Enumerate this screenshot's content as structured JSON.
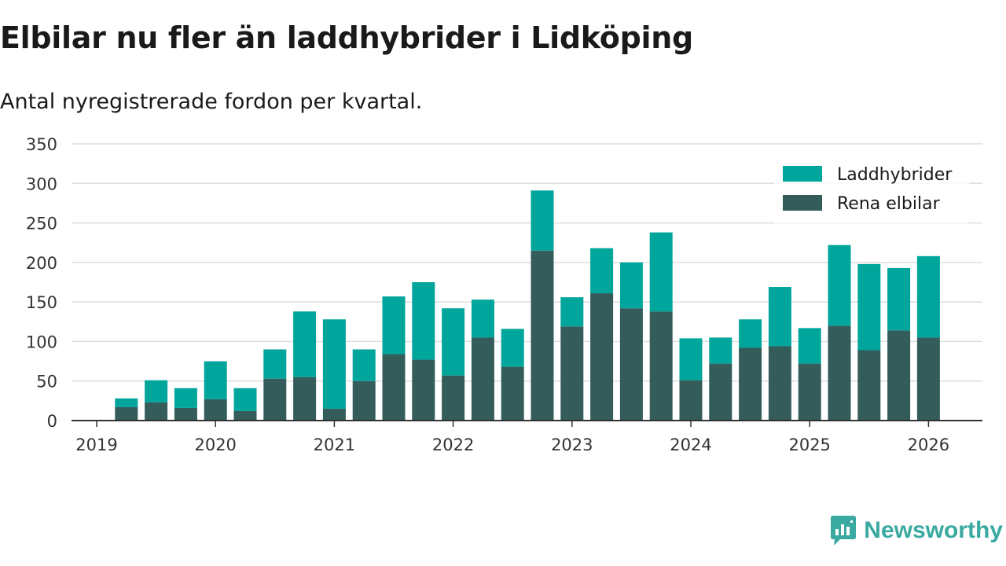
{
  "header": {
    "title": "Elbilar nu fler än laddhybrider i Lidköping",
    "subtitle": "Antal nyregistrerade fordon per kvartal."
  },
  "brand": {
    "name": "Newsworthy"
  },
  "colors": {
    "electric": "#335c5a",
    "hybrid": "#00a59b",
    "grid": "#dddddd",
    "axis": "#333333",
    "text": "#333333",
    "brand": "#3aa99f"
  },
  "chart_data": {
    "type": "bar",
    "stacked": true,
    "title": "Elbilar nu fler än laddhybrider i Lidköping",
    "subtitle": "Antal nyregistrerade fordon per kvartal.",
    "xlabel": "",
    "ylabel": "",
    "ylim": [
      0,
      350
    ],
    "yticks": [
      0,
      50,
      100,
      150,
      200,
      250,
      300,
      350
    ],
    "xticks": [
      "2019",
      "2020",
      "2021",
      "2022",
      "2023",
      "2024",
      "2025",
      "2026"
    ],
    "grid": true,
    "legend_position": "top-right",
    "categories": [
      "2019 Q2",
      "2019 Q3",
      "2019 Q4",
      "2020 Q1",
      "2020 Q2",
      "2020 Q3",
      "2020 Q4",
      "2021 Q1",
      "2021 Q2",
      "2021 Q3",
      "2021 Q4",
      "2022 Q1",
      "2022 Q2",
      "2022 Q3",
      "2022 Q4",
      "2023 Q1",
      "2023 Q2",
      "2023 Q3",
      "2023 Q4",
      "2024 Q1",
      "2024 Q2",
      "2024 Q3",
      "2024 Q4",
      "2025 Q1",
      "2025 Q2",
      "2025 Q3",
      "2025 Q4",
      "2026 Q1"
    ],
    "series": [
      {
        "name": "Rena elbilar",
        "values": [
          17,
          23,
          16,
          27,
          12,
          53,
          55,
          15,
          50,
          84,
          77,
          57,
          105,
          68,
          215,
          119,
          161,
          142,
          138,
          51,
          72,
          92,
          94,
          72,
          120,
          89,
          114,
          105
        ]
      },
      {
        "name": "Laddhybrider",
        "values": [
          11,
          28,
          25,
          48,
          29,
          37,
          83,
          113,
          40,
          73,
          98,
          85,
          48,
          48,
          76,
          37,
          57,
          58,
          100,
          53,
          33,
          36,
          75,
          45,
          102,
          109,
          79,
          103
        ]
      }
    ],
    "legend": [
      "Laddhybrider",
      "Rena elbilar"
    ]
  }
}
